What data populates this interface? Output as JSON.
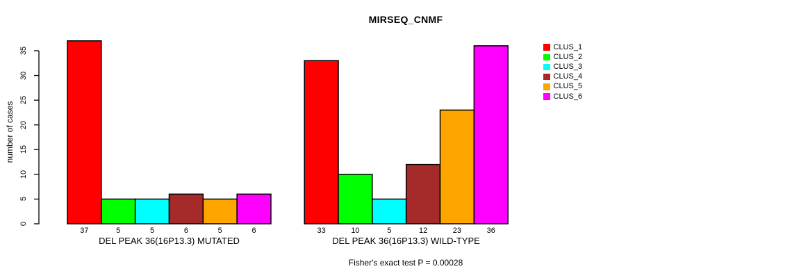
{
  "chart_data": {
    "type": "bar",
    "title": "MIRSEQ_CNMF",
    "ylabel": "number of cases",
    "ylim": [
      0,
      37
    ],
    "yticks": [
      0,
      5,
      10,
      15,
      20,
      25,
      30,
      35
    ],
    "grid": false,
    "legend_position": "right-top-outside",
    "series": [
      {
        "name": "CLUS_1",
        "color": "#FF0000"
      },
      {
        "name": "CLUS_2",
        "color": "#00FF00"
      },
      {
        "name": "CLUS_3",
        "color": "#00FFFF"
      },
      {
        "name": "CLUS_4",
        "color": "#A52A2A"
      },
      {
        "name": "CLUS_5",
        "color": "#FFA500"
      },
      {
        "name": "CLUS_6",
        "color": "#FF00FF"
      }
    ],
    "groups": [
      {
        "label": "DEL PEAK 36(16P13.3) MUTATED",
        "values": [
          37,
          5,
          5,
          6,
          5,
          6
        ]
      },
      {
        "label": "DEL PEAK 36(16P13.3) WILD-TYPE",
        "values": [
          33,
          10,
          5,
          12,
          23,
          36
        ]
      }
    ],
    "bar_value_labels_shown": true,
    "annotation": "Fisher's exact test P = 0.00028",
    "colors": {
      "bar_border": "#000000",
      "axis": "#000000",
      "text": "#000000",
      "background": "#FFFFFF"
    }
  }
}
